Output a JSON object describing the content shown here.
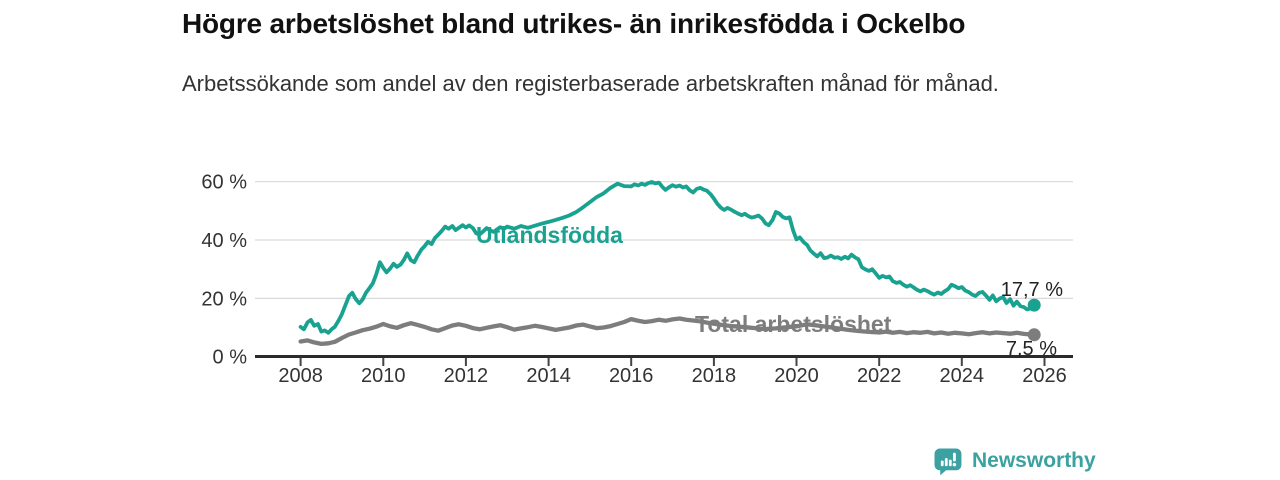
{
  "header": {
    "title": "Högre arbetslöshet bland utrikes- än inrikesfödda i Ockelbo",
    "subtitle": "Arbetssökande som andel av den registerbaserade arbetskraften månad för månad."
  },
  "chart_data": {
    "type": "line",
    "title": "Högre arbetslöshet bland utrikes- än inrikesfödda i Ockelbo",
    "subtitle": "Arbetssökande som andel av den registerbaserade arbetskraften månad för månad.",
    "grid": true,
    "x_axis": {
      "ticks": [
        2008,
        2010,
        2012,
        2014,
        2016,
        2018,
        2020,
        2022,
        2024,
        2026
      ],
      "range": [
        2007.0,
        2026.7
      ]
    },
    "y_axis": {
      "ticks": [
        0,
        20,
        40,
        60
      ],
      "suffix": " %",
      "range": [
        0,
        62
      ]
    },
    "colors": {
      "accent_teal": "#1aa291",
      "accent_gray": "#7d7d7d",
      "grid": "#d9d9d9",
      "axis": "#2b2b2b",
      "text": "#333333",
      "value_label": "#222222"
    },
    "series": [
      {
        "name": "Utlandsfödda",
        "color": "#1aa291",
        "end_label": "17,7 %",
        "end_value": 17.7,
        "points": [
          [
            2008.0,
            10.2
          ],
          [
            2008.08,
            9.4
          ],
          [
            2008.17,
            11.8
          ],
          [
            2008.25,
            12.6
          ],
          [
            2008.33,
            10.6
          ],
          [
            2008.42,
            11.2
          ],
          [
            2008.5,
            8.6
          ],
          [
            2008.58,
            9.0
          ],
          [
            2008.67,
            8.2
          ],
          [
            2008.75,
            9.4
          ],
          [
            2008.83,
            10.3
          ],
          [
            2008.92,
            12.4
          ],
          [
            2009.0,
            14.6
          ],
          [
            2009.08,
            17.5
          ],
          [
            2009.17,
            20.8
          ],
          [
            2009.25,
            21.9
          ],
          [
            2009.33,
            19.8
          ],
          [
            2009.42,
            18.3
          ],
          [
            2009.5,
            19.6
          ],
          [
            2009.58,
            21.9
          ],
          [
            2009.67,
            23.6
          ],
          [
            2009.75,
            25.2
          ],
          [
            2009.83,
            28.2
          ],
          [
            2009.92,
            32.4
          ],
          [
            2010.0,
            30.4
          ],
          [
            2010.08,
            28.9
          ],
          [
            2010.17,
            30.3
          ],
          [
            2010.25,
            31.9
          ],
          [
            2010.33,
            30.8
          ],
          [
            2010.42,
            31.6
          ],
          [
            2010.5,
            33.2
          ],
          [
            2010.58,
            35.4
          ],
          [
            2010.67,
            33.1
          ],
          [
            2010.75,
            32.4
          ],
          [
            2010.83,
            34.6
          ],
          [
            2010.92,
            36.7
          ],
          [
            2011.0,
            37.9
          ],
          [
            2011.08,
            39.4
          ],
          [
            2011.17,
            38.6
          ],
          [
            2011.25,
            40.7
          ],
          [
            2011.33,
            41.8
          ],
          [
            2011.42,
            43.2
          ],
          [
            2011.5,
            44.6
          ],
          [
            2011.58,
            43.9
          ],
          [
            2011.67,
            44.8
          ],
          [
            2011.75,
            43.4
          ],
          [
            2011.83,
            44.2
          ],
          [
            2011.92,
            45.1
          ],
          [
            2012.0,
            44.3
          ],
          [
            2012.08,
            45.0
          ],
          [
            2012.17,
            44.1
          ],
          [
            2012.25,
            42.3
          ],
          [
            2012.33,
            41.9
          ],
          [
            2012.42,
            43.0
          ],
          [
            2012.5,
            44.1
          ],
          [
            2012.58,
            43.4
          ],
          [
            2012.67,
            42.8
          ],
          [
            2012.75,
            43.6
          ],
          [
            2012.83,
            44.4
          ],
          [
            2012.92,
            43.8
          ],
          [
            2013.0,
            44.6
          ],
          [
            2013.17,
            43.9
          ],
          [
            2013.33,
            44.8
          ],
          [
            2013.5,
            44.2
          ],
          [
            2013.67,
            44.9
          ],
          [
            2013.83,
            45.6
          ],
          [
            2014.0,
            46.2
          ],
          [
            2014.17,
            46.9
          ],
          [
            2014.33,
            47.6
          ],
          [
            2014.5,
            48.4
          ],
          [
            2014.67,
            49.6
          ],
          [
            2014.83,
            51.2
          ],
          [
            2015.0,
            53.0
          ],
          [
            2015.17,
            54.8
          ],
          [
            2015.33,
            56.0
          ],
          [
            2015.5,
            57.9
          ],
          [
            2015.67,
            59.3
          ],
          [
            2015.83,
            58.5
          ],
          [
            2016.0,
            58.4
          ],
          [
            2016.08,
            59.1
          ],
          [
            2016.17,
            58.7
          ],
          [
            2016.25,
            59.3
          ],
          [
            2016.33,
            58.9
          ],
          [
            2016.42,
            59.6
          ],
          [
            2016.5,
            59.9
          ],
          [
            2016.58,
            59.4
          ],
          [
            2016.67,
            59.7
          ],
          [
            2016.75,
            58.3
          ],
          [
            2016.83,
            57.2
          ],
          [
            2016.92,
            58.1
          ],
          [
            2017.0,
            58.8
          ],
          [
            2017.08,
            58.3
          ],
          [
            2017.17,
            58.7
          ],
          [
            2017.25,
            58.0
          ],
          [
            2017.33,
            58.4
          ],
          [
            2017.42,
            57.0
          ],
          [
            2017.5,
            56.3
          ],
          [
            2017.58,
            57.5
          ],
          [
            2017.67,
            57.9
          ],
          [
            2017.75,
            57.3
          ],
          [
            2017.83,
            56.9
          ],
          [
            2017.92,
            55.7
          ],
          [
            2018.0,
            54.2
          ],
          [
            2018.08,
            52.5
          ],
          [
            2018.17,
            51.1
          ],
          [
            2018.25,
            50.3
          ],
          [
            2018.33,
            51.0
          ],
          [
            2018.42,
            50.4
          ],
          [
            2018.5,
            49.7
          ],
          [
            2018.58,
            49.1
          ],
          [
            2018.67,
            48.5
          ],
          [
            2018.75,
            49.0
          ],
          [
            2018.83,
            48.2
          ],
          [
            2018.92,
            47.7
          ],
          [
            2019.0,
            48.0
          ],
          [
            2019.08,
            48.4
          ],
          [
            2019.17,
            47.3
          ],
          [
            2019.25,
            45.7
          ],
          [
            2019.33,
            45.1
          ],
          [
            2019.42,
            46.9
          ],
          [
            2019.5,
            49.6
          ],
          [
            2019.58,
            49.1
          ],
          [
            2019.67,
            47.9
          ],
          [
            2019.75,
            47.4
          ],
          [
            2019.83,
            47.8
          ],
          [
            2019.92,
            43.2
          ],
          [
            2020.0,
            40.2
          ],
          [
            2020.08,
            40.9
          ],
          [
            2020.17,
            39.3
          ],
          [
            2020.25,
            38.4
          ],
          [
            2020.33,
            36.5
          ],
          [
            2020.42,
            35.3
          ],
          [
            2020.5,
            34.4
          ],
          [
            2020.58,
            35.5
          ],
          [
            2020.67,
            33.8
          ],
          [
            2020.75,
            34.0
          ],
          [
            2020.83,
            34.7
          ],
          [
            2020.92,
            33.9
          ],
          [
            2021.0,
            34.1
          ],
          [
            2021.08,
            33.5
          ],
          [
            2021.17,
            34.3
          ],
          [
            2021.25,
            33.7
          ],
          [
            2021.33,
            35.0
          ],
          [
            2021.42,
            34.0
          ],
          [
            2021.5,
            33.4
          ],
          [
            2021.58,
            30.7
          ],
          [
            2021.67,
            29.9
          ],
          [
            2021.75,
            29.4
          ],
          [
            2021.83,
            30.0
          ],
          [
            2021.92,
            28.5
          ],
          [
            2022.0,
            27.0
          ],
          [
            2022.08,
            27.7
          ],
          [
            2022.17,
            27.2
          ],
          [
            2022.25,
            27.5
          ],
          [
            2022.33,
            25.9
          ],
          [
            2022.42,
            25.3
          ],
          [
            2022.5,
            25.6
          ],
          [
            2022.58,
            24.7
          ],
          [
            2022.67,
            24.0
          ],
          [
            2022.75,
            24.5
          ],
          [
            2022.83,
            23.8
          ],
          [
            2022.92,
            22.9
          ],
          [
            2023.0,
            22.4
          ],
          [
            2023.08,
            23.0
          ],
          [
            2023.17,
            22.5
          ],
          [
            2023.25,
            21.8
          ],
          [
            2023.33,
            21.3
          ],
          [
            2023.42,
            22.0
          ],
          [
            2023.5,
            21.5
          ],
          [
            2023.58,
            22.4
          ],
          [
            2023.67,
            23.2
          ],
          [
            2023.75,
            24.7
          ],
          [
            2023.83,
            24.2
          ],
          [
            2023.92,
            23.5
          ],
          [
            2024.0,
            23.9
          ],
          [
            2024.08,
            22.7
          ],
          [
            2024.17,
            22.1
          ],
          [
            2024.25,
            21.3
          ],
          [
            2024.33,
            20.8
          ],
          [
            2024.42,
            21.9
          ],
          [
            2024.5,
            22.2
          ],
          [
            2024.58,
            21.0
          ],
          [
            2024.67,
            19.5
          ],
          [
            2024.75,
            21.0
          ],
          [
            2024.83,
            19.0
          ],
          [
            2024.92,
            20.0
          ],
          [
            2025.0,
            20.4
          ],
          [
            2025.08,
            18.4
          ],
          [
            2025.17,
            19.7
          ],
          [
            2025.25,
            17.5
          ],
          [
            2025.33,
            18.9
          ],
          [
            2025.42,
            17.3
          ],
          [
            2025.5,
            17.0
          ],
          [
            2025.58,
            16.2
          ],
          [
            2025.67,
            16.6
          ],
          [
            2025.75,
            17.7
          ]
        ]
      },
      {
        "name": "Total arbetslöshet",
        "color": "#7d7d7d",
        "end_label": "7,5 %",
        "end_value": 7.5,
        "points": [
          [
            2008.0,
            5.2
          ],
          [
            2008.17,
            5.6
          ],
          [
            2008.33,
            4.9
          ],
          [
            2008.5,
            4.4
          ],
          [
            2008.67,
            4.6
          ],
          [
            2008.83,
            5.1
          ],
          [
            2009.0,
            6.4
          ],
          [
            2009.17,
            7.6
          ],
          [
            2009.33,
            8.3
          ],
          [
            2009.5,
            9.1
          ],
          [
            2009.67,
            9.6
          ],
          [
            2009.83,
            10.3
          ],
          [
            2010.0,
            11.2
          ],
          [
            2010.17,
            10.4
          ],
          [
            2010.33,
            9.9
          ],
          [
            2010.5,
            10.8
          ],
          [
            2010.67,
            11.5
          ],
          [
            2010.83,
            10.9
          ],
          [
            2011.0,
            10.2
          ],
          [
            2011.17,
            9.4
          ],
          [
            2011.33,
            8.9
          ],
          [
            2011.5,
            9.8
          ],
          [
            2011.67,
            10.7
          ],
          [
            2011.83,
            11.1
          ],
          [
            2012.0,
            10.6
          ],
          [
            2012.17,
            9.8
          ],
          [
            2012.33,
            9.4
          ],
          [
            2012.5,
            9.9
          ],
          [
            2012.67,
            10.4
          ],
          [
            2012.83,
            10.8
          ],
          [
            2013.0,
            10.1
          ],
          [
            2013.17,
            9.3
          ],
          [
            2013.33,
            9.7
          ],
          [
            2013.5,
            10.1
          ],
          [
            2013.67,
            10.6
          ],
          [
            2013.83,
            10.2
          ],
          [
            2014.0,
            9.7
          ],
          [
            2014.17,
            9.2
          ],
          [
            2014.33,
            9.6
          ],
          [
            2014.5,
            10.0
          ],
          [
            2014.67,
            10.7
          ],
          [
            2014.83,
            11.0
          ],
          [
            2015.0,
            10.4
          ],
          [
            2015.17,
            9.8
          ],
          [
            2015.33,
            10.0
          ],
          [
            2015.5,
            10.5
          ],
          [
            2015.67,
            11.2
          ],
          [
            2015.83,
            11.9
          ],
          [
            2016.0,
            12.9
          ],
          [
            2016.17,
            12.3
          ],
          [
            2016.33,
            11.9
          ],
          [
            2016.5,
            12.2
          ],
          [
            2016.67,
            12.7
          ],
          [
            2016.83,
            12.3
          ],
          [
            2017.0,
            12.8
          ],
          [
            2017.17,
            13.1
          ],
          [
            2017.33,
            12.7
          ],
          [
            2017.5,
            12.4
          ],
          [
            2017.67,
            12.1
          ],
          [
            2017.83,
            11.7
          ],
          [
            2018.0,
            11.3
          ],
          [
            2018.25,
            10.8
          ],
          [
            2018.5,
            10.4
          ],
          [
            2018.75,
            10.1
          ],
          [
            2019.0,
            9.8
          ],
          [
            2019.25,
            9.5
          ],
          [
            2019.5,
            9.7
          ],
          [
            2019.75,
            10.1
          ],
          [
            2020.0,
            10.4
          ],
          [
            2020.25,
            11.1
          ],
          [
            2020.5,
            10.7
          ],
          [
            2020.75,
            10.2
          ],
          [
            2021.0,
            9.7
          ],
          [
            2021.25,
            9.2
          ],
          [
            2021.5,
            8.8
          ],
          [
            2021.75,
            8.5
          ],
          [
            2022.0,
            8.3
          ],
          [
            2022.17,
            8.6
          ],
          [
            2022.33,
            8.2
          ],
          [
            2022.5,
            8.5
          ],
          [
            2022.67,
            8.1
          ],
          [
            2022.83,
            8.4
          ],
          [
            2023.0,
            8.2
          ],
          [
            2023.17,
            8.5
          ],
          [
            2023.33,
            8.0
          ],
          [
            2023.5,
            8.3
          ],
          [
            2023.67,
            7.9
          ],
          [
            2023.83,
            8.2
          ],
          [
            2024.0,
            8.0
          ],
          [
            2024.17,
            7.7
          ],
          [
            2024.33,
            8.1
          ],
          [
            2024.5,
            8.4
          ],
          [
            2024.67,
            8.0
          ],
          [
            2024.83,
            8.3
          ],
          [
            2025.0,
            8.1
          ],
          [
            2025.17,
            7.9
          ],
          [
            2025.33,
            8.2
          ],
          [
            2025.5,
            7.8
          ],
          [
            2025.67,
            7.6
          ],
          [
            2025.75,
            7.5
          ]
        ]
      }
    ]
  },
  "footer": {
    "brand": "Newsworthy",
    "brand_color": "#3ba1a1"
  }
}
